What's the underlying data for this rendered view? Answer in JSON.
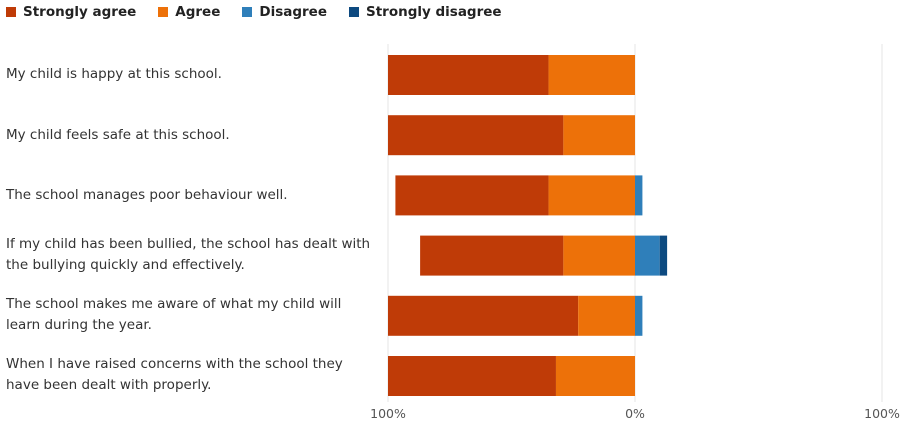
{
  "chart_data": {
    "type": "bar",
    "orientation": "horizontal",
    "stacked": "diverging",
    "legend": [
      {
        "name": "Strongly agree",
        "color": "#bf3b07"
      },
      {
        "name": "Agree",
        "color": "#ed7109"
      },
      {
        "name": "Disagree",
        "color": "#2f7fba"
      },
      {
        "name": "Strongly disagree",
        "color": "#0d4a80"
      }
    ],
    "legend_position": "top-left",
    "categories": [
      "My child is happy at this school.",
      "My child feels safe at this school.",
      "The school manages poor behaviour well.",
      "If my child has been bullied, the school has dealt with the bullying quickly and effectively.",
      "The school makes me aware of what my child will learn during the year.",
      "When I have raised concerns with the school they have been dealt with properly."
    ],
    "series": [
      {
        "name": "Strongly agree",
        "values": [
          65,
          71,
          62,
          58,
          77,
          68
        ]
      },
      {
        "name": "Agree",
        "values": [
          35,
          29,
          35,
          29,
          23,
          32
        ]
      },
      {
        "name": "Disagree",
        "values": [
          0,
          0,
          3,
          10,
          3,
          0
        ]
      },
      {
        "name": "Strongly disagree",
        "values": [
          0,
          0,
          0,
          3,
          0,
          0
        ]
      }
    ],
    "x_ticks": [
      "100%",
      "0%",
      "100%"
    ],
    "xlim": [
      -100,
      100
    ],
    "grid": true
  }
}
